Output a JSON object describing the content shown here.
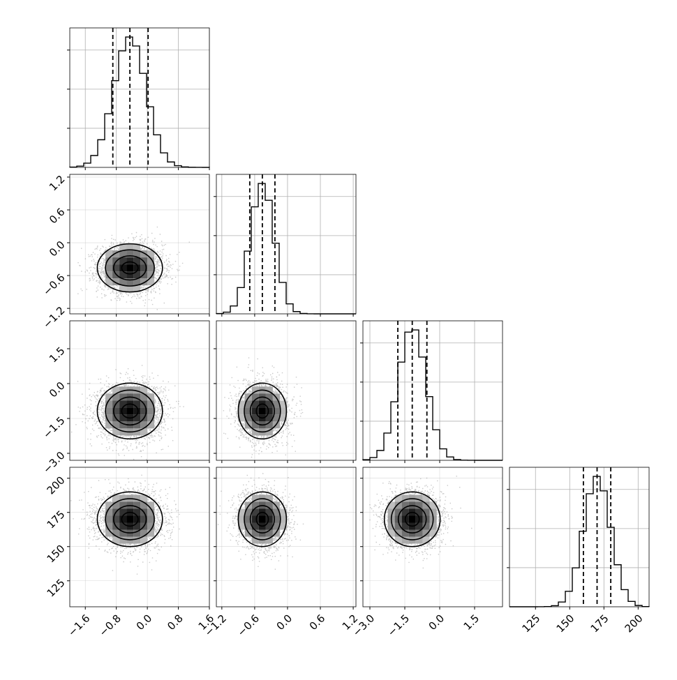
{
  "chart_data": {
    "type": "corner",
    "grid": true,
    "n_params": 4,
    "params": [
      {
        "index": 0,
        "range": [
          -2.0,
          1.6
        ],
        "ticks": [
          -1.6,
          -0.8,
          0.0,
          0.8,
          1.6
        ],
        "tick_labels": [
          "−1.6",
          "−0.8",
          "0.0",
          "0.8",
          "1.6"
        ],
        "mean": -0.45,
        "std": 0.42,
        "quantiles": [
          -0.89,
          -0.45,
          0.02
        ]
      },
      {
        "index": 1,
        "range": [
          -1.3,
          1.25
        ],
        "ticks": [
          -1.2,
          -0.6,
          0.0,
          0.6,
          1.2
        ],
        "tick_labels": [
          "−1.2",
          "−0.6",
          "0.0",
          "0.6",
          "1.2"
        ],
        "mean": -0.46,
        "std": 0.22,
        "quantiles": [
          -0.69,
          -0.46,
          -0.23
        ]
      },
      {
        "index": 2,
        "range": [
          -3.3,
          2.7
        ],
        "ticks": [
          -3.0,
          -1.5,
          0.0,
          1.5
        ],
        "tick_labels": [
          "−3.0",
          "−1.5",
          "0.0",
          "1.5"
        ],
        "mean": -1.18,
        "std": 0.6,
        "quantiles": [
          -1.8,
          -1.18,
          -0.55
        ]
      },
      {
        "index": 3,
        "range": [
          106,
          208
        ],
        "ticks": [
          125,
          150,
          175,
          200
        ],
        "tick_labels": [
          "125",
          "150",
          "175",
          "200"
        ],
        "mean": 170.0,
        "std": 10.0,
        "quantiles": [
          160.0,
          170.0,
          180.0
        ]
      }
    ],
    "histogram_bins": 20,
    "contour_levels_sigma": [
      0.5,
      1.0,
      1.5,
      2.0
    ],
    "scatter_points": 3000,
    "colors": {
      "line": "#000000",
      "grid": "#b0b0b0",
      "scatter": "#888888"
    }
  }
}
